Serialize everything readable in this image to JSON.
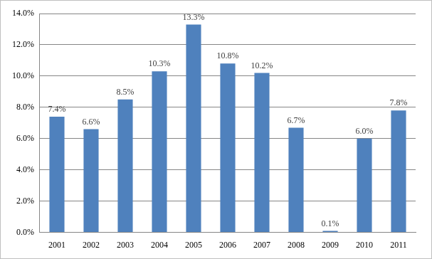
{
  "chart_data": {
    "type": "bar",
    "categories": [
      "2001",
      "2002",
      "2003",
      "2004",
      "2005",
      "2006",
      "2007",
      "2008",
      "2009",
      "2010",
      "2011"
    ],
    "values": [
      7.4,
      6.6,
      8.5,
      10.3,
      13.3,
      10.8,
      10.2,
      6.7,
      0.1,
      6.0,
      7.8
    ],
    "value_labels": [
      "7.4%",
      "6.6%",
      "8.5%",
      "10.3%",
      "13.3%",
      "10.8%",
      "10.2%",
      "6.7%",
      "0.1%",
      "6.0%",
      "7.8%"
    ],
    "color": "#4f81bd",
    "ylim": [
      0,
      14
    ],
    "yticks": [
      {
        "value": 0,
        "label": "0.0%"
      },
      {
        "value": 2,
        "label": "2.0%"
      },
      {
        "value": 4,
        "label": "4.0%"
      },
      {
        "value": 6,
        "label": "6.0%"
      },
      {
        "value": 8,
        "label": "8.0%"
      },
      {
        "value": 10,
        "label": "10.0%"
      },
      {
        "value": 12,
        "label": "12.0%"
      },
      {
        "value": 14,
        "label": "14.0%"
      }
    ],
    "grid": true,
    "data_labels": true
  }
}
